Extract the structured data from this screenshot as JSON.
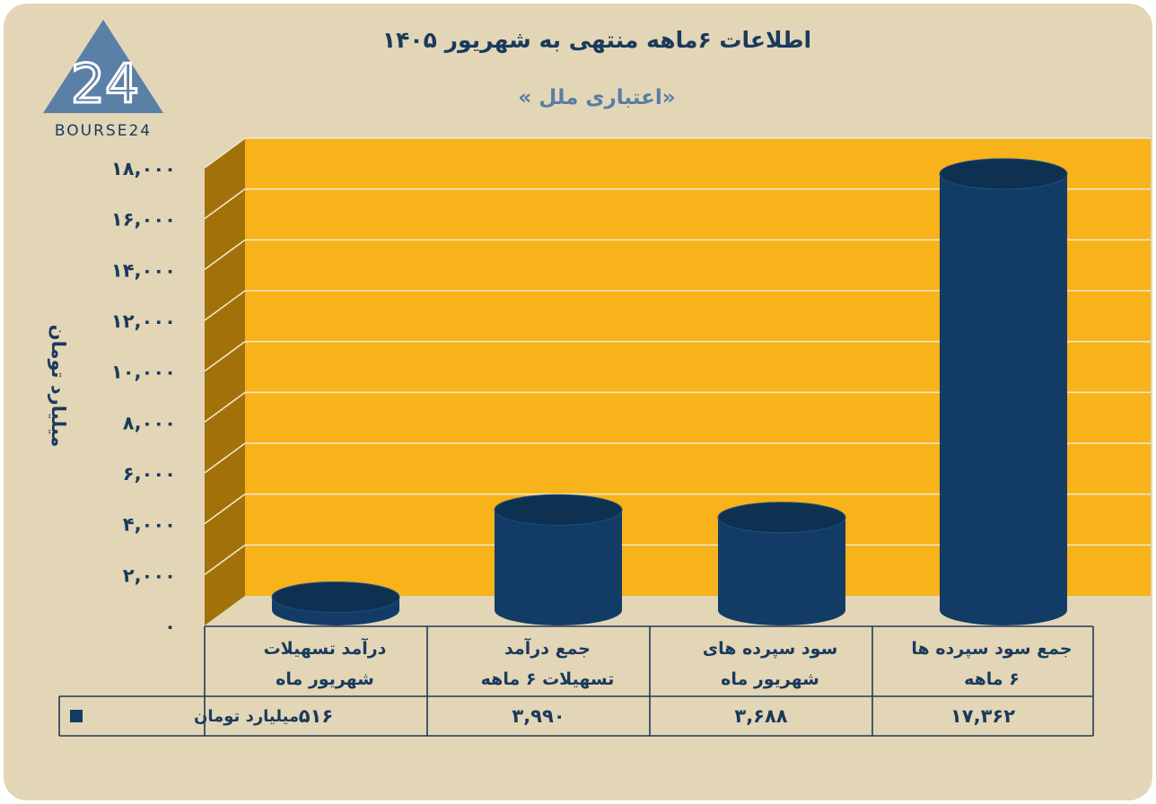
{
  "title": "اطلاعات ۶ماهه منتهی به شهریور ۱۴۰۵",
  "subtitle": "«اعتباری ملل »",
  "logo": {
    "text": "BOURSE24",
    "mark": "24"
  },
  "colors": {
    "background": "#e2d6b7",
    "plot_back": "#f8b21a",
    "plot_side": "#a37109",
    "bar": "#123c65",
    "bar_top": "#0e3152",
    "text": "#1a3a5c"
  },
  "chart_data": {
    "type": "bar",
    "categories": [
      [
        "درآمد تسهیلات",
        "شهریور ماه"
      ],
      [
        "جمع درآمد",
        "تسهیلات ۶ ماهه"
      ],
      [
        "سود سپرده های",
        "شهریور ماه"
      ],
      [
        "جمع سود سپرده ها",
        "۶ ماهه"
      ]
    ],
    "series": [
      {
        "name": "میلیارد تومان",
        "values": [
          516,
          3990,
          3688,
          17362
        ],
        "labels": [
          "۵۱۶",
          "۳,۹۹۰",
          "۳,۶۸۸",
          "۱۷,۳۶۲"
        ]
      }
    ],
    "ylabel": "میلیارد تومان",
    "ylim": [
      0,
      18000
    ],
    "yticks": [
      0,
      2000,
      4000,
      6000,
      8000,
      10000,
      12000,
      14000,
      16000,
      18000
    ],
    "ytick_labels": [
      "۰",
      "۲,۰۰۰",
      "۴,۰۰۰",
      "۶,۰۰۰",
      "۸,۰۰۰",
      "۱۰,۰۰۰",
      "۱۲,۰۰۰",
      "۱۴,۰۰۰",
      "۱۶,۰۰۰",
      "۱۸,۰۰۰"
    ],
    "grid": true,
    "legend": "data-table"
  }
}
